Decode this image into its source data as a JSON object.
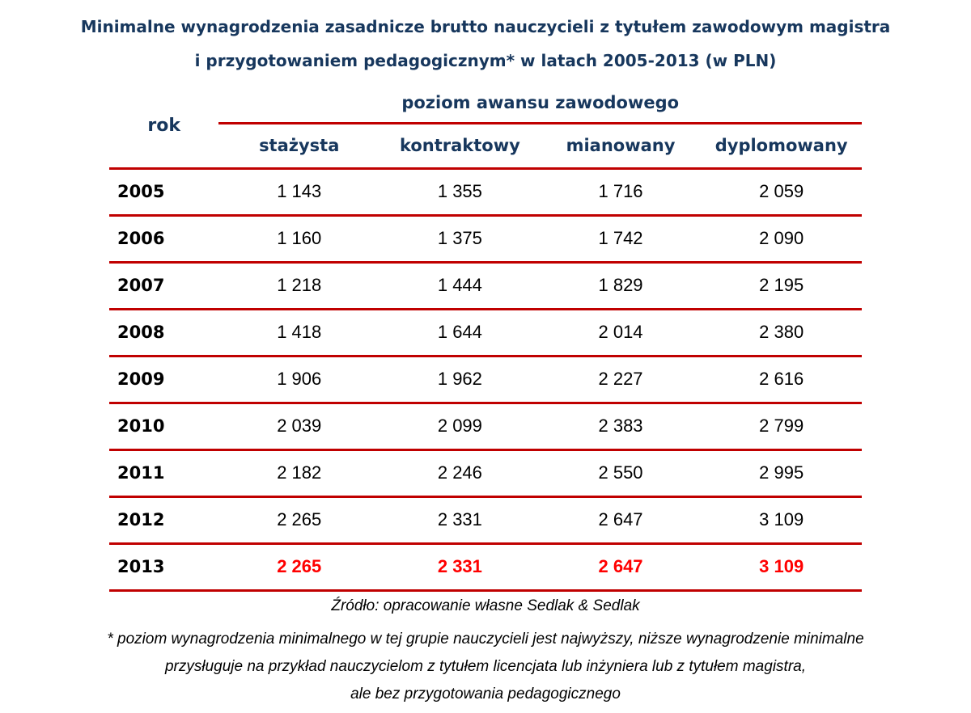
{
  "title": {
    "line1": "Minimalne wynagrodzenia zasadnicze brutto nauczycieli z tytułem zawodowym magistra",
    "line2": "i przygotowaniem pedagogicznym* w latach 2005-2013 (w PLN)"
  },
  "colors": {
    "heading_navy": "#17375D",
    "divider_red": "#C00000",
    "highlight_red": "#FF0000",
    "background": "#FFFFFF"
  },
  "chart_data": {
    "type": "table",
    "title": "Minimalne wynagrodzenia zasadnicze brutto nauczycieli z tytułem zawodowym magistra i przygotowaniem pedagogicznym* w latach 2005-2013 (w PLN)",
    "row_header": "rok",
    "group_header": "poziom awansu zawodowego",
    "columns": [
      "stażysta",
      "kontraktowy",
      "mianowany",
      "dyplomowany"
    ],
    "rows": [
      {
        "year": "2005",
        "values": [
          "1 143",
          "1 355",
          "1 716",
          "2 059"
        ],
        "highlight": false
      },
      {
        "year": "2006",
        "values": [
          "1 160",
          "1 375",
          "1 742",
          "2 090"
        ],
        "highlight": false
      },
      {
        "year": "2007",
        "values": [
          "1 218",
          "1 444",
          "1 829",
          "2 195"
        ],
        "highlight": false
      },
      {
        "year": "2008",
        "values": [
          "1 418",
          "1 644",
          "2 014",
          "2 380"
        ],
        "highlight": false
      },
      {
        "year": "2009",
        "values": [
          "1 906",
          "1 962",
          "2 227",
          "2 616"
        ],
        "highlight": false
      },
      {
        "year": "2010",
        "values": [
          "2 039",
          "2 099",
          "2 383",
          "2 799"
        ],
        "highlight": false
      },
      {
        "year": "2011",
        "values": [
          "2 182",
          "2 246",
          "2 550",
          "2 995"
        ],
        "highlight": false
      },
      {
        "year": "2012",
        "values": [
          "2 265",
          "2 331",
          "2 647",
          "3 109"
        ],
        "highlight": false
      },
      {
        "year": "2013",
        "values": [
          "2 265",
          "2 331",
          "2 647",
          "3 109"
        ],
        "highlight": true
      }
    ],
    "source": "Źródło: opracowanie własne Sedlak & Sedlak",
    "footnote_lines": [
      "* poziom wynagrodzenia minimalnego w tej grupie nauczycieli jest najwyższy, niższe wynagrodzenie minimalne",
      "przysługuje na przykład nauczycielom z tytułem licencjata lub inżyniera lub z tytułem magistra,",
      "ale bez przygotowania pedagogicznego"
    ]
  }
}
